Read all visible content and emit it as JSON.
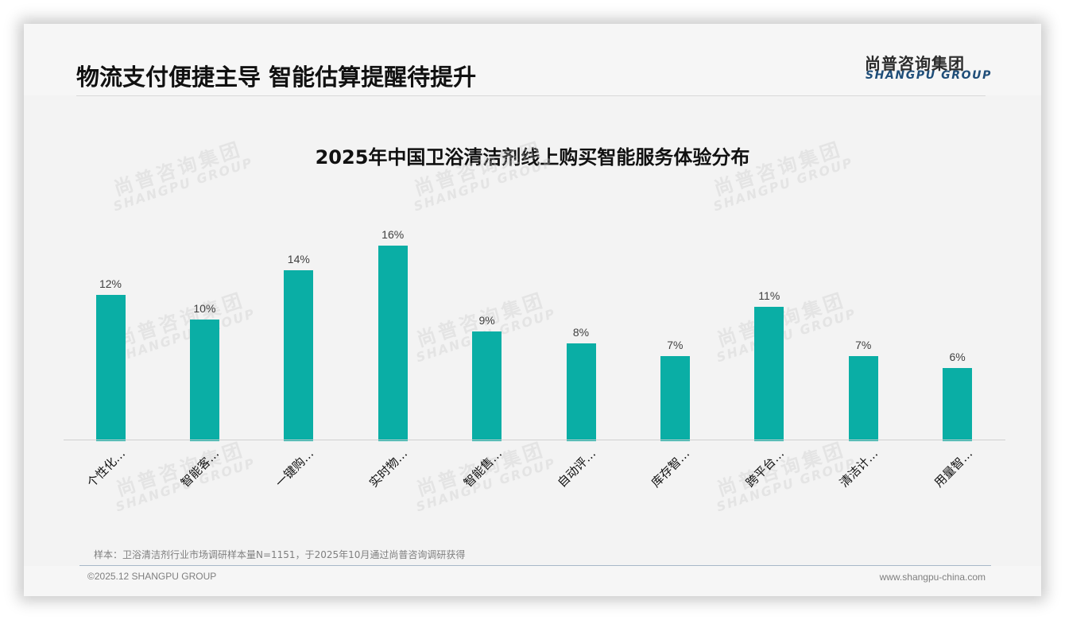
{
  "header": {
    "title": "物流支付便捷主导 智能估算提醒待提升",
    "logo_cn": "尚普咨询集团",
    "logo_en": "SHANGPU GROUP"
  },
  "watermark": {
    "cn": "尚普咨询集团",
    "en": "SHANGPU GROUP"
  },
  "footer": {
    "note": "样本：卫浴清洁剂行业市场调研样本量N=1151，于2025年10月通过尚普咨询调研获得",
    "copyright": "©2025.12 SHANGPU GROUP",
    "website": "www.shangpu-china.com"
  },
  "colors": {
    "bar": "#0aaea5",
    "title": "#111111",
    "logo_en": "#1f4e79"
  },
  "chart_data": {
    "type": "bar",
    "title": "2025年中国卫浴清洁剂线上购买智能服务体验分布",
    "xlabel": "",
    "ylabel": "",
    "categories": [
      "个性化…",
      "智能客…",
      "一键购…",
      "实时物…",
      "智能售…",
      "自动评…",
      "库存智…",
      "跨平台…",
      "清洁计…",
      "用量智…"
    ],
    "values": [
      12,
      10,
      14,
      16,
      9,
      8,
      7,
      11,
      7,
      6
    ],
    "value_labels": [
      "12%",
      "10%",
      "14%",
      "16%",
      "9%",
      "8%",
      "7%",
      "11%",
      "7%",
      "6%"
    ],
    "unit": "%",
    "ylim": [
      0,
      16
    ],
    "grid": false,
    "legend": "none"
  }
}
